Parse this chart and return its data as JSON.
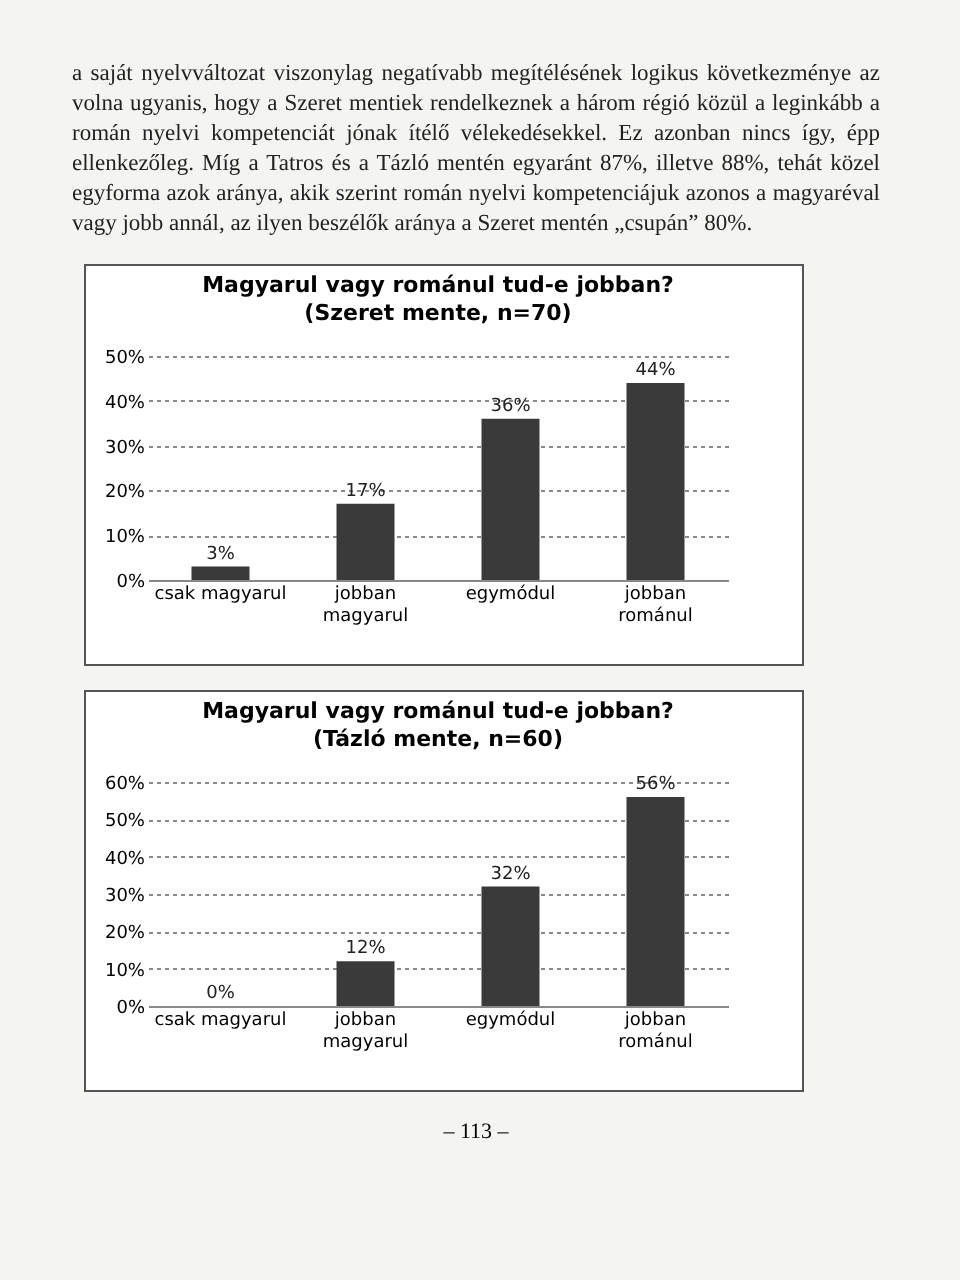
{
  "chart_data": [
    {
      "type": "other",
      "annotations": [
        "a saját nyelvváltozat viszonylag negatívabb megítélésének logikus következménye az volna ugyanis, hogy a Szeret mentiek rendelkeznek a három régió közül a leginkább a román nyelvi kompetenciát jónak ítélő vélekedésekkel. Ez azonban nincs így, épp ellenkezőleg. Míg a Tatros és a Tázló mentén egyaránt 87%, illetve 88%, tehát közel egyforma azok aránya, akik szerint román nyelvi kompetenciájuk azonos a magyaréval vagy jobb annál, az ilyen beszélők aránya a Szeret mentén „csupán” 80%."
      ]
    },
    {
      "type": "bar",
      "title": "Magyarul vagy románul tud-e jobban?",
      "subtitle": "(Szeret mente, n=70)",
      "categories": [
        "csak magyarul",
        "jobban magyarul",
        "egymódul",
        "jobban románul"
      ],
      "values": [
        3,
        17,
        36,
        44
      ],
      "value_labels": [
        "3%",
        "17%",
        "36%",
        "44%"
      ],
      "color": "#3a3a3a",
      "ylim": [
        0,
        50
      ],
      "yticks": [
        {
          "value": 0,
          "label": "0%"
        },
        {
          "value": 10,
          "label": "10%"
        },
        {
          "value": 20,
          "label": "20%"
        },
        {
          "value": 30,
          "label": "30%"
        },
        {
          "value": 40,
          "label": "40%"
        },
        {
          "value": 50,
          "label": "50%"
        }
      ],
      "grid": "y"
    },
    {
      "type": "bar",
      "title": "Magyarul vagy románul tud-e jobban?",
      "subtitle": "(Tázló mente, n=60)",
      "categories": [
        "csak magyarul",
        "jobban magyarul",
        "egymódul",
        "jobban románul"
      ],
      "values": [
        0,
        12,
        32,
        56
      ],
      "value_labels": [
        "0%",
        "12%",
        "32%",
        "56%"
      ],
      "color": "#3a3a3a",
      "ylim": [
        0,
        60
      ],
      "yticks": [
        {
          "value": 0,
          "label": "0%"
        },
        {
          "value": 10,
          "label": "10%"
        },
        {
          "value": 20,
          "label": "20%"
        },
        {
          "value": 30,
          "label": "30%"
        },
        {
          "value": 40,
          "label": "40%"
        },
        {
          "value": 50,
          "label": "50%"
        },
        {
          "value": 60,
          "label": "60%"
        }
      ],
      "grid": "y"
    },
    {
      "type": "other",
      "annotations": [
        "– 113 –"
      ]
    }
  ]
}
